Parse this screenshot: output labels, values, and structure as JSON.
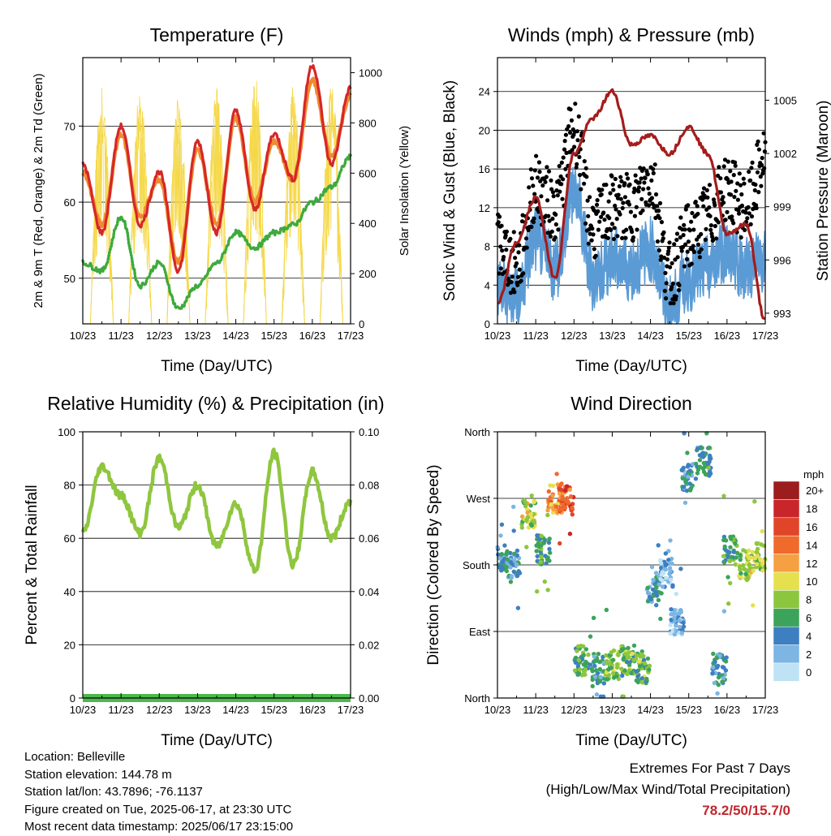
{
  "x_ticks": [
    "10/23",
    "11/23",
    "12/23",
    "13/23",
    "14/23",
    "15/23",
    "16/23",
    "17/23"
  ],
  "x_title": "Time (Day/UTC)",
  "colors": {
    "temp_2m": "#d62728",
    "temp_9m": "#f08a30",
    "dewpoint": "#3daa3d",
    "solar": "#f5d84a",
    "wind": "#5b9bd5",
    "gust": "#000000",
    "pressure": "#a51c1c",
    "rh": "#8fc63f",
    "precip": "#4db84d"
  },
  "temperature": {
    "title": "Temperature (F)",
    "ylabel_left": "2m & 9m T (Red, Orange) & 2m Td (Green)",
    "ylabel_right": "Solar Insolation (Yellow)",
    "left_ticks": [
      "50",
      "60",
      "70"
    ],
    "right_ticks": [
      "0",
      "200",
      "400",
      "600",
      "800",
      "1000"
    ]
  },
  "winds": {
    "title": "Winds (mph) & Pressure (mb)",
    "ylabel_left": "Sonic Wind & Gust (Blue, Black)",
    "ylabel_right": "Station Pressure (Maroon)",
    "left_ticks": [
      "0",
      "4",
      "8",
      "12",
      "16",
      "20",
      "24"
    ],
    "right_ticks": [
      "993",
      "996",
      "999",
      "1002",
      "1005"
    ]
  },
  "humidity": {
    "title": "Relative Humidity (%) & Precipitation (in)",
    "ylabel_left": "Percent & Total Rainfall",
    "left_ticks": [
      "0",
      "20",
      "40",
      "60",
      "80",
      "100"
    ],
    "right_ticks": [
      "0.00",
      "0.02",
      "0.04",
      "0.06",
      "0.08",
      "0.10"
    ]
  },
  "direction": {
    "title": "Wind Direction",
    "ylabel_left": "Direction (Colored By Speed)",
    "left_ticks": [
      "North",
      "East",
      "South",
      "West",
      "North"
    ],
    "legend_title": "mph",
    "legend_labels": [
      "20+",
      "18",
      "16",
      "14",
      "12",
      "10",
      "8",
      "6",
      "4",
      "2",
      "0"
    ],
    "legend_colors": [
      "#9b1d1d",
      "#c8262b",
      "#e0452a",
      "#f06a2b",
      "#f5a043",
      "#e6e04e",
      "#8cc63f",
      "#3ca35a",
      "#3e7fc1",
      "#7db5e3",
      "#bfe3f5"
    ]
  },
  "info": {
    "location": "Location: Belleville",
    "elevation": "Station elevation: 144.78 m",
    "latlon": "Station lat/lon: 43.7896; -76.1137",
    "created": "Figure created on Tue, 2025-06-17, at 23:30 UTC",
    "timestamp": "Most recent data timestamp: 2025/06/17 23:15:00"
  },
  "extremes": {
    "line1": "Extremes For Past 7 Days",
    "line2": "(High/Low/Max Wind/Total Precipitation)",
    "values": "78.2/50/15.7/0"
  },
  "chart_data": [
    {
      "type": "line",
      "title": "Temperature (F)",
      "xlabel": "Time (Day/UTC)",
      "ylabel": "2m & 9m T (Red, Orange) & 2m Td (Green)",
      "y2label": "Solar Insolation (Yellow)",
      "x": [
        10,
        10.5,
        11,
        11.5,
        12,
        12.5,
        13,
        13.5,
        14,
        14.5,
        15,
        15.5,
        16,
        16.5,
        17
      ],
      "ylim": [
        44,
        79
      ],
      "y2lim": [
        0,
        1060
      ],
      "series": [
        {
          "name": "2m T",
          "axis": "left",
          "values": [
            65,
            56,
            70,
            57,
            64,
            51,
            68,
            56,
            72,
            59,
            69,
            63,
            78,
            65,
            75
          ]
        },
        {
          "name": "9m T",
          "axis": "left",
          "values": [
            64,
            57,
            69,
            58,
            63,
            52,
            67,
            57,
            71,
            60,
            68,
            63,
            76,
            66,
            74
          ]
        },
        {
          "name": "2m Td",
          "axis": "left",
          "values": [
            52,
            51,
            58,
            49,
            52,
            46,
            49,
            52,
            56,
            54,
            56,
            57,
            60,
            62,
            66
          ]
        },
        {
          "name": "Solar Insolation",
          "axis": "right",
          "values": [
            0,
            950,
            0,
            950,
            0,
            920,
            0,
            940,
            0,
            1000,
            0,
            950,
            0,
            980,
            300
          ]
        }
      ]
    },
    {
      "type": "line",
      "title": "Winds (mph) & Pressure (mb)",
      "xlabel": "Time (Day/UTC)",
      "ylabel": "Sonic Wind & Gust (Blue, Black)",
      "y2label": "Station Pressure (Maroon)",
      "x": [
        10,
        10.5,
        11,
        11.5,
        12,
        12.5,
        13,
        13.5,
        14,
        14.5,
        15,
        15.5,
        16,
        16.5,
        17
      ],
      "ylim": [
        0,
        27.5
      ],
      "y2lim": [
        992.4,
        1007.4
      ],
      "series": [
        {
          "name": "Sonic Wind",
          "axis": "left",
          "values": [
            4,
            3,
            9,
            6,
            14,
            5,
            7,
            6,
            8,
            2,
            5,
            6,
            8,
            6,
            7
          ]
        },
        {
          "name": "Gust",
          "axis": "left",
          "values": [
            8,
            6,
            14,
            12,
            20,
            10,
            12,
            12,
            15,
            5,
            9,
            11,
            14,
            12,
            17
          ]
        },
        {
          "name": "Station Pressure",
          "axis": "right",
          "values": [
            993.5,
            997,
            999.5,
            995,
            1002,
            1004,
            1005.5,
            1002.5,
            1003,
            1002,
            1003.5,
            1002,
            997.5,
            998,
            992.6
          ]
        }
      ]
    },
    {
      "type": "line",
      "title": "Relative Humidity (%) & Precipitation (in)",
      "xlabel": "Time (Day/UTC)",
      "ylabel": "Percent & Total Rainfall",
      "x": [
        10,
        10.5,
        11,
        11.5,
        12,
        12.5,
        13,
        13.5,
        14,
        14.5,
        15,
        15.5,
        16,
        16.5,
        17
      ],
      "ylim": [
        0,
        100
      ],
      "y2lim": [
        0,
        0.1
      ],
      "series": [
        {
          "name": "Relative Humidity",
          "axis": "left",
          "values": [
            62,
            87,
            76,
            62,
            90,
            64,
            80,
            57,
            73,
            48,
            92,
            50,
            85,
            60,
            74
          ]
        },
        {
          "name": "Total Precipitation",
          "axis": "right",
          "values": [
            0,
            0,
            0,
            0,
            0,
            0,
            0,
            0,
            0,
            0,
            0,
            0,
            0,
            0,
            0
          ]
        }
      ]
    },
    {
      "type": "scatter",
      "title": "Wind Direction",
      "xlabel": "Time (Day/UTC)",
      "ylabel": "Direction (Colored By Speed)",
      "ylim": [
        0,
        360
      ],
      "y_tick_values": [
        0,
        90,
        180,
        270,
        360
      ],
      "color_scale": "mph",
      "x": [
        10.1,
        10.4,
        10.8,
        11.2,
        11.5,
        11.8,
        12.2,
        12.6,
        13.0,
        13.4,
        13.8,
        14.1,
        14.4,
        14.7,
        15.0,
        15.4,
        15.8,
        16.1,
        16.5,
        16.9
      ],
      "direction": [
        190,
        180,
        250,
        200,
        270,
        270,
        50,
        40,
        45,
        50,
        40,
        150,
        170,
        100,
        300,
        320,
        40,
        200,
        180,
        190
      ],
      "speed": [
        4,
        4,
        9,
        6,
        13,
        15,
        6,
        4,
        8,
        7,
        7,
        4,
        2,
        2,
        4,
        5,
        4,
        6,
        9,
        8
      ]
    }
  ]
}
